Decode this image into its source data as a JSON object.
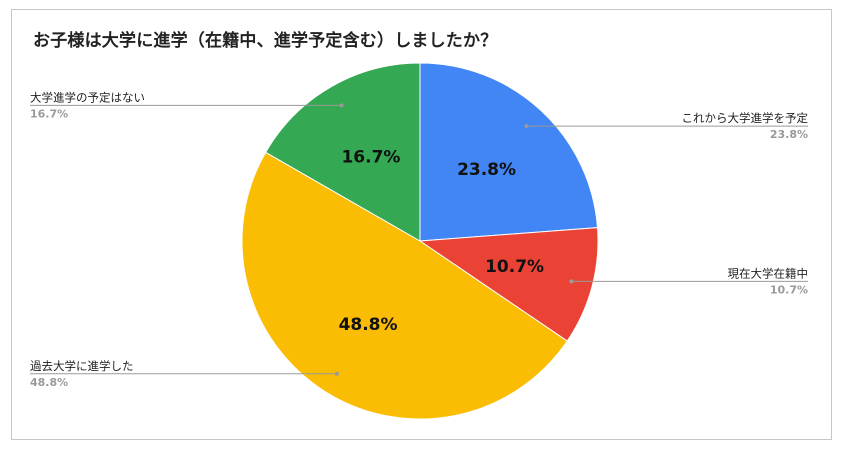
{
  "chart_data": {
    "type": "pie",
    "title": "お子様は大学に進学（在籍中、進学予定含む）しましたか？",
    "categories": [
      "これから大学進学を予定",
      "現在大学在籍中",
      "過去大学に進学した",
      "大学進学の予定はない"
    ],
    "values": [
      23.8,
      10.7,
      48.8,
      16.7
    ],
    "value_labels": [
      "23.8%",
      "10.7%",
      "48.8%",
      "16.7%"
    ],
    "colors": [
      "#4285f4",
      "#ea4335",
      "#fbbc04",
      "#34a853"
    ],
    "start_angle_deg": 0,
    "direction": "clockwise",
    "legend": "callout-labels"
  }
}
